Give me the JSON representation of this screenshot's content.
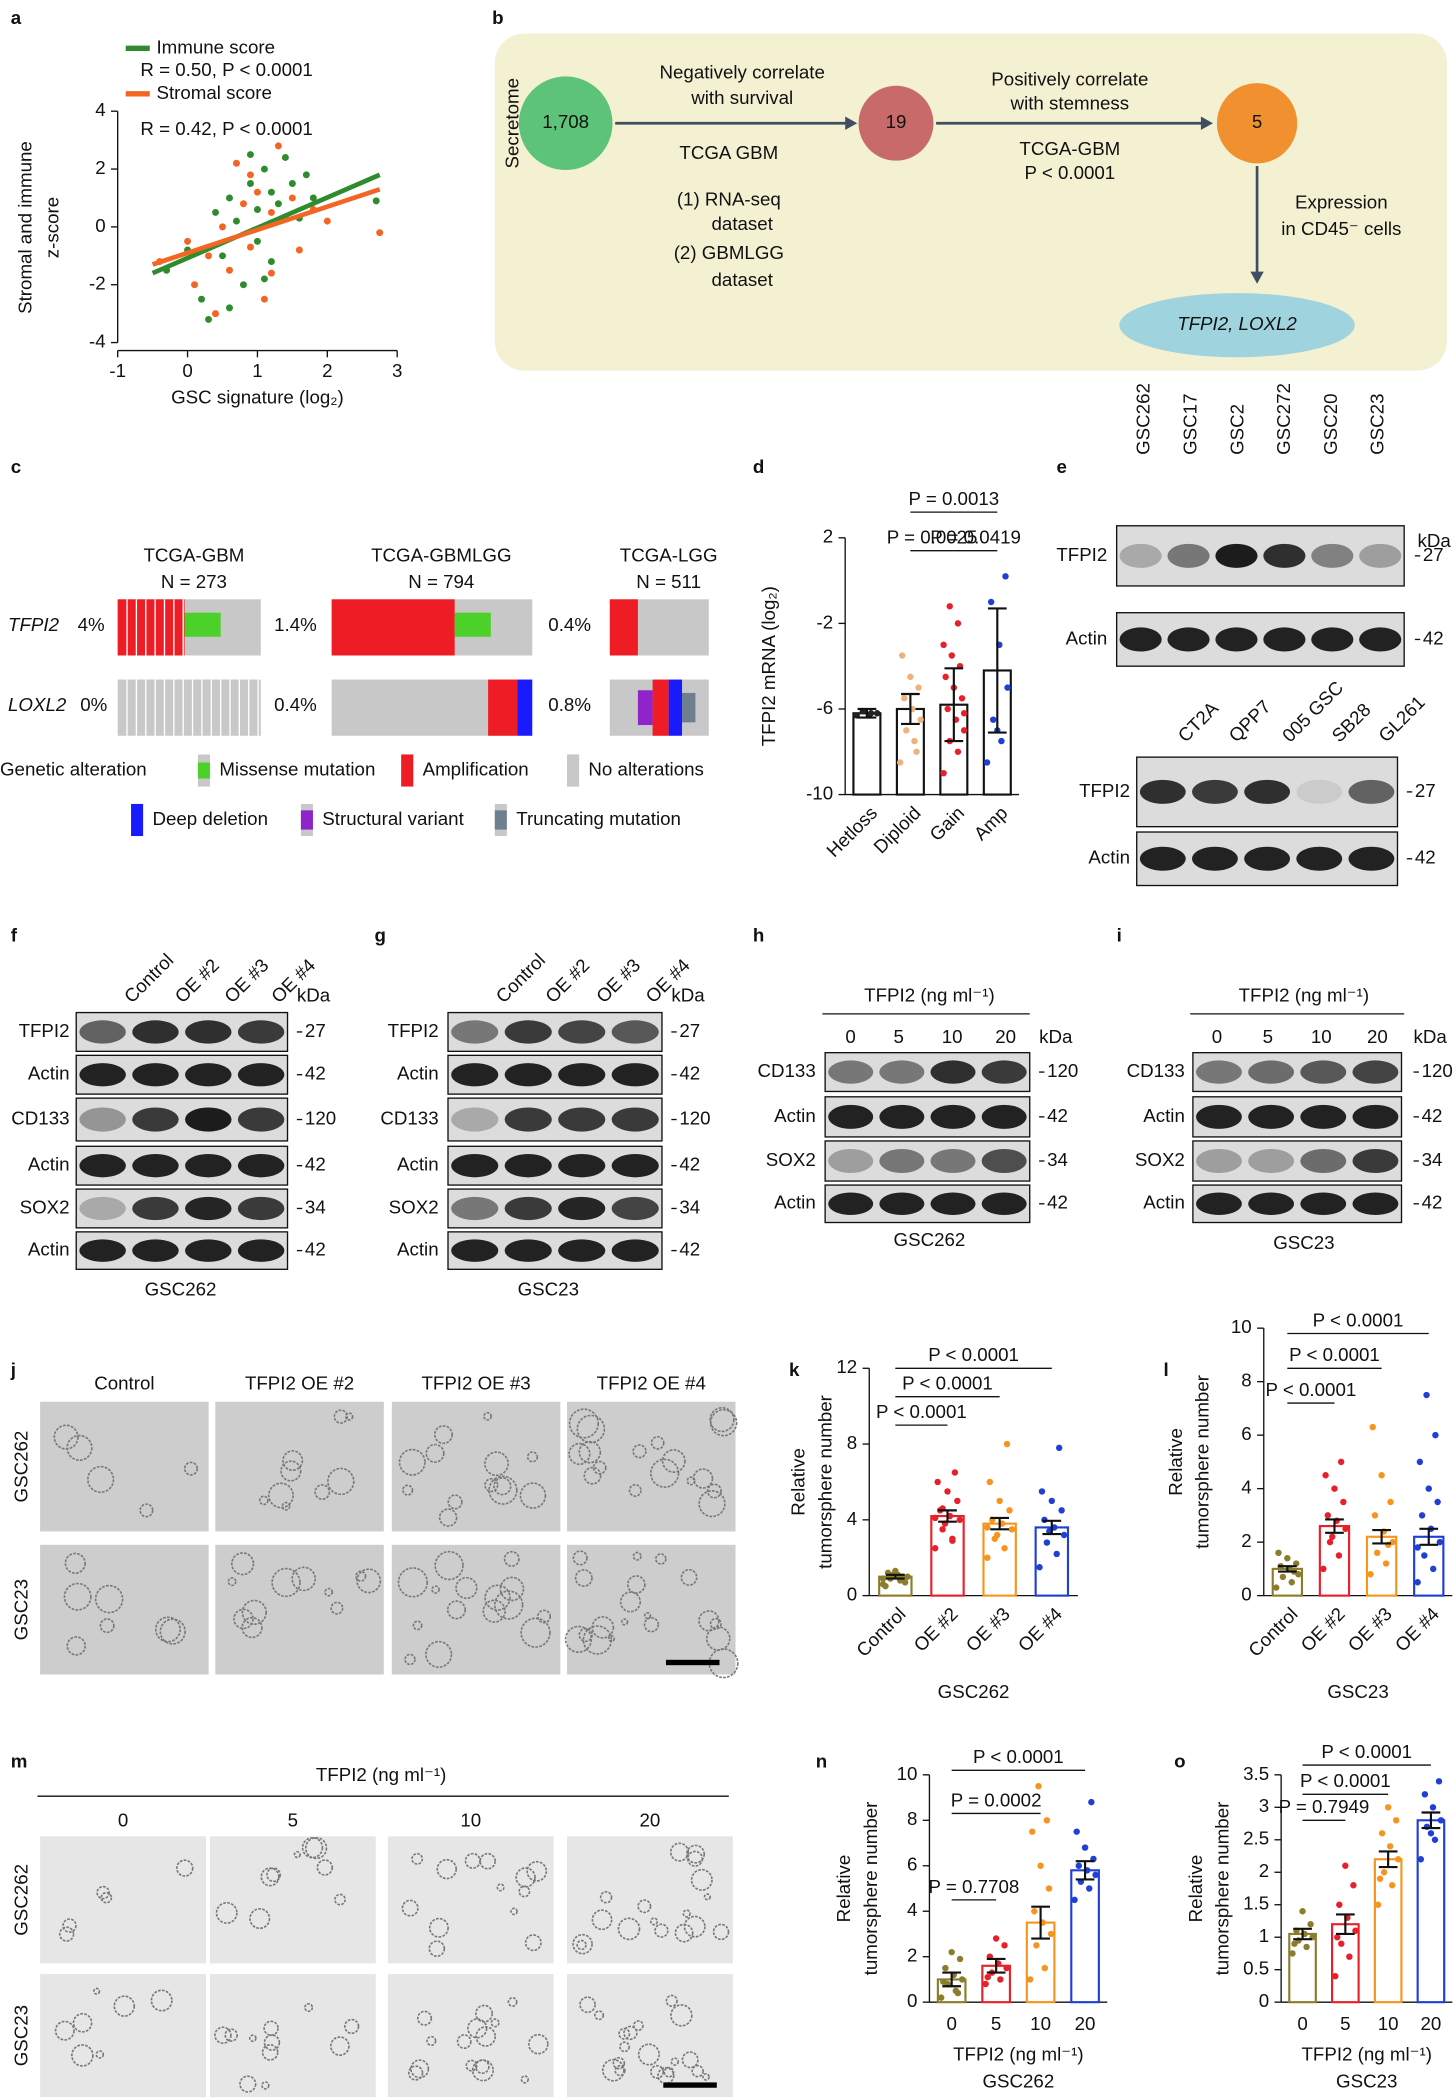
{
  "panel_labels": [
    "a",
    "b",
    "c",
    "d",
    "e",
    "f",
    "g",
    "h",
    "i",
    "j",
    "k",
    "l",
    "m",
    "n",
    "o"
  ],
  "panel_b": {
    "side_label": "Secretome",
    "nodes": [
      "1,708",
      "19",
      "5"
    ],
    "step1": [
      "Negatively correlate",
      "with survival"
    ],
    "step1_data": [
      "TCGA GBM",
      "(1) RNA-seq",
      "dataset",
      "(2) GBMLGG",
      "dataset"
    ],
    "step2": [
      "Positively correlate",
      "with stemness"
    ],
    "step2_data": [
      "TCGA-GBM",
      "P < 0.0001"
    ],
    "step3": [
      "Expression",
      "in CD45⁻ cells"
    ],
    "result": "TFPI2, LOXL2"
  },
  "panel_c": {
    "cohorts": [
      {
        "name": "TCGA-GBM",
        "n": "N = 273",
        "tfpi2": "4%",
        "loxl2": "0%"
      },
      {
        "name": "TCGA-GBMLGG",
        "n": "N = 794",
        "tfpi2": "1.4%",
        "loxl2": "0.4%"
      },
      {
        "name": "TCGA-LGG",
        "n": "N = 511",
        "tfpi2": "0.4%",
        "loxl2": "0.8%"
      }
    ],
    "genes": [
      "TFPI2",
      "LOXL2"
    ],
    "legend_title": "Genetic alteration",
    "legend": [
      "Missense mutation",
      "Amplification",
      "No alterations",
      "Deep deletion",
      "Structural variant",
      "Truncating mutation"
    ]
  },
  "blots": {
    "e_top": {
      "lanes": [
        "GSC262",
        "GSC17",
        "GSC2",
        "GSC272",
        "GSC20",
        "GSC23"
      ],
      "kda": "kDa",
      "rows": [
        {
          "label": "TFPI2",
          "size": "27"
        },
        {
          "label": "Actin",
          "size": "42"
        }
      ]
    },
    "e_bottom": {
      "lanes": [
        "CT2A",
        "QPP7",
        "005 GSC",
        "SB28",
        "GL261"
      ],
      "rows": [
        {
          "label": "TFPI2",
          "size": "27"
        },
        {
          "label": "Actin",
          "size": "42"
        }
      ]
    },
    "f": {
      "lanes": [
        "Control",
        "OE #2",
        "OE #3",
        "OE #4"
      ],
      "kda": "kDa",
      "rows": [
        {
          "label": "TFPI2",
          "size": "27"
        },
        {
          "label": "Actin",
          "size": "42"
        },
        {
          "label": "CD133",
          "size": "120"
        },
        {
          "label": "Actin",
          "size": "42"
        },
        {
          "label": "SOX2",
          "size": "34"
        },
        {
          "label": "Actin",
          "size": "42"
        }
      ],
      "caption": "GSC262"
    },
    "g": {
      "lanes": [
        "Control",
        "OE #2",
        "OE #3",
        "OE #4"
      ],
      "kda": "kDa",
      "rows": [
        {
          "label": "TFPI2",
          "size": "27"
        },
        {
          "label": "Actin",
          "size": "42"
        },
        {
          "label": "CD133",
          "size": "120"
        },
        {
          "label": "Actin",
          "size": "42"
        },
        {
          "label": "SOX2",
          "size": "34"
        },
        {
          "label": "Actin",
          "size": "42"
        }
      ],
      "caption": "GSC23"
    },
    "h": {
      "header": "TFPI2 (ng ml⁻¹)",
      "lanes": [
        "0",
        "5",
        "10",
        "20"
      ],
      "kda": "kDa",
      "rows": [
        {
          "label": "CD133",
          "size": "120"
        },
        {
          "label": "Actin",
          "size": "42"
        },
        {
          "label": "SOX2",
          "size": "34"
        },
        {
          "label": "Actin",
          "size": "42"
        }
      ],
      "caption": "GSC262"
    },
    "i": {
      "header": "TFPI2 (ng ml⁻¹)",
      "lanes": [
        "0",
        "5",
        "10",
        "20"
      ],
      "kda": "kDa",
      "rows": [
        {
          "label": "CD133",
          "size": "120"
        },
        {
          "label": "Actin",
          "size": "42"
        },
        {
          "label": "SOX2",
          "size": "34"
        },
        {
          "label": "Actin",
          "size": "42"
        }
      ],
      "caption": "GSC23"
    }
  },
  "micrographs": {
    "j": {
      "columns": [
        "Control",
        "TFPI2 OE #2",
        "TFPI2 OE #3",
        "TFPI2 OE #4"
      ],
      "rows": [
        "GSC262",
        "GSC23"
      ]
    },
    "m": {
      "header": "TFPI2 (ng ml⁻¹)",
      "columns": [
        "0",
        "5",
        "10",
        "20"
      ],
      "rows": [
        "GSC262",
        "GSC23"
      ]
    }
  },
  "chart_data": [
    {
      "type": "scatter",
      "xlabel": "GSC signature (log₂)",
      "ylabel": [
        "Stromal and immune",
        "z-score"
      ],
      "annotations": [
        "R = 0.50, P < 0.0001",
        "R = 0.42, P < 0.0001"
      ],
      "xlim": [
        -1,
        3
      ],
      "ylim": [
        -4,
        4
      ],
      "xticks": [
        -1,
        0,
        1,
        2,
        3
      ],
      "yticks": [
        -4,
        -2,
        0,
        2,
        4
      ],
      "series": [
        {
          "name": "Immune score",
          "color": "#2e8b2e",
          "x": [
            -0.3,
            0,
            0.2,
            0.4,
            0.5,
            0.6,
            0.7,
            0.8,
            0.9,
            1.0,
            1.0,
            1.1,
            1.2,
            1.2,
            1.3,
            1.4,
            1.5,
            1.6,
            1.7,
            1.8,
            0.3,
            0.6,
            0.9,
            1.1,
            2.7
          ],
          "y": [
            -1.5,
            -0.8,
            -2.5,
            0.5,
            -1,
            1,
            0.2,
            -2,
            1.5,
            0.6,
            -0.5,
            2,
            1.2,
            -1.2,
            0.8,
            2.4,
            1.5,
            0.3,
            1.8,
            1.0,
            -3.2,
            -2.8,
            2.5,
            -1.8,
            0.9
          ],
          "fit": {
            "x": [
              -0.5,
              2.75
            ],
            "y": [
              -1.6,
              1.8
            ]
          }
        },
        {
          "name": "Stromal score",
          "color": "#f26522",
          "x": [
            -0.4,
            0,
            0.1,
            0.3,
            0.5,
            0.6,
            0.8,
            0.9,
            1.0,
            1.1,
            1.2,
            1.3,
            1.4,
            1.5,
            1.6,
            1.8,
            2.0,
            0.4,
            0.7,
            1.2,
            2.75,
            0.9
          ],
          "y": [
            -1.2,
            -0.5,
            -2,
            -1,
            0,
            -1.5,
            0.8,
            -0.7,
            1.2,
            -2.5,
            0.5,
            2.8,
            0.3,
            1,
            -0.8,
            0.6,
            0.2,
            -3,
            2.2,
            -1.6,
            -0.2,
            1.8
          ],
          "fit": {
            "x": [
              -0.5,
              2.75
            ],
            "y": [
              -1.3,
              1.3
            ]
          }
        }
      ]
    },
    {
      "type": "bar",
      "ylabel": [
        "TFPI2 mRNA (log₂)"
      ],
      "categories": [
        "Hetloss",
        "Diploid",
        "Gain",
        "Amp"
      ],
      "values": [
        -6.2,
        -6.0,
        -5.8,
        -4.2
      ],
      "errors": [
        0.2,
        0.7,
        1.7,
        2.9
      ],
      "colors": [
        "#222222",
        "#f0b27a",
        "#e8202a",
        "#1f3fd6"
      ],
      "points": [
        [
          -6.3,
          -6.2,
          -6.1,
          -6.2,
          -6.3
        ],
        [
          -8.5,
          -7.5,
          -7,
          -6.5,
          -6,
          -5.5,
          -5,
          -4.5,
          -3.5,
          -8
        ],
        [
          -9,
          -8,
          -7.5,
          -7,
          -6.5,
          -6,
          -5.5,
          -5,
          -4.5,
          -4,
          -3.5,
          -3,
          -2,
          -1.2,
          -6.2
        ],
        [
          -8.5,
          -7.5,
          -6.5,
          -5,
          -3,
          -1,
          0.2,
          -7
        ]
      ],
      "annotations": [
        "P = 0.0013",
        "P = 0.0025",
        "P = 0.0419"
      ],
      "ylim": [
        -10,
        2
      ],
      "yticks": [
        -10,
        -6,
        -2,
        2
      ]
    },
    {
      "type": "bar",
      "ylabel": [
        "Relative",
        "tumorsphere number"
      ],
      "categories": [
        "Control",
        "OE #2",
        "OE #3",
        "OE #4"
      ],
      "values": [
        1.0,
        4.2,
        3.8,
        3.6
      ],
      "errors": [
        0.1,
        0.3,
        0.3,
        0.35
      ],
      "colors": [
        "#8b7d2b",
        "#e8202a",
        "#f7941d",
        "#1f3fd6"
      ],
      "points": [
        [
          0.6,
          0.8,
          0.9,
          1.0,
          1.1,
          1.2,
          0.7,
          1.3,
          0.5,
          1.0,
          1.1,
          0.9
        ],
        [
          2.5,
          3,
          3.5,
          4,
          4.2,
          4.5,
          5,
          5.5,
          6,
          6.5,
          3.8,
          4.1,
          2.9,
          4.6
        ],
        [
          2,
          2.5,
          3,
          3.5,
          3.8,
          4,
          4.5,
          5,
          6,
          8,
          3.2,
          3.6
        ],
        [
          1.5,
          2.2,
          2.8,
          3.2,
          3.6,
          4,
          4.5,
          5,
          5.5,
          7.8,
          3.4
        ]
      ],
      "annotations": [
        "P < 0.0001",
        "P < 0.0001",
        "P < 0.0001"
      ],
      "xlabel": "GSC262",
      "ylim": [
        0,
        12
      ],
      "yticks": [
        0,
        4,
        8,
        12
      ]
    },
    {
      "type": "bar",
      "ylabel": [
        "Relative",
        "tumorsphere number"
      ],
      "categories": [
        "Control",
        "OE #2",
        "OE #3",
        "OE #4"
      ],
      "values": [
        1.0,
        2.6,
        2.2,
        2.2
      ],
      "errors": [
        0.1,
        0.25,
        0.25,
        0.3
      ],
      "colors": [
        "#8b7d2b",
        "#e8202a",
        "#f7941d",
        "#1f3fd6"
      ],
      "points": [
        [
          0.3,
          0.5,
          0.7,
          0.8,
          1,
          1.1,
          1.2,
          1.4,
          1.6,
          0.9
        ],
        [
          1,
          1.5,
          2,
          2.5,
          2.8,
          3,
          3.5,
          4,
          4.5,
          5,
          2.2
        ],
        [
          0.8,
          1.2,
          1.6,
          2,
          2.4,
          3,
          3.5,
          4.5,
          6.3,
          1.9
        ],
        [
          0.5,
          1,
          1.5,
          2,
          2.5,
          3,
          3.5,
          4,
          5,
          6,
          7.5,
          1.8
        ]
      ],
      "annotations": [
        "P < 0.0001",
        "P < 0.0001",
        "P < 0.0001"
      ],
      "xlabel": "GSC23",
      "ylim": [
        0,
        10
      ],
      "yticks": [
        0,
        2,
        4,
        6,
        8,
        10
      ]
    },
    {
      "type": "bar",
      "ylabel": [
        "Relative",
        "tumorsphere number"
      ],
      "categories": [
        "0",
        "5",
        "10",
        "20"
      ],
      "values": [
        1.0,
        1.6,
        3.5,
        5.8
      ],
      "errors": [
        0.3,
        0.3,
        0.7,
        0.4
      ],
      "colors": [
        "#8b7d2b",
        "#e8202a",
        "#f7941d",
        "#1f3fd6"
      ],
      "points": [
        [
          0.2,
          0.5,
          0.8,
          1,
          1.2,
          1.5,
          1.9,
          2.2,
          0.9,
          0.4
        ],
        [
          0.8,
          1,
          1.3,
          1.5,
          1.7,
          2,
          2.5,
          2.8,
          1.1
        ],
        [
          1,
          1.5,
          2.5,
          3,
          3.5,
          4,
          5,
          6,
          7.5,
          8,
          9.5
        ],
        [
          4.5,
          5,
          5.3,
          5.6,
          5.8,
          6,
          6.3,
          6.8,
          7.5,
          8.8
        ]
      ],
      "annotations": [
        "P = 0.7708",
        "P = 0.0002",
        "P < 0.0001"
      ],
      "xlabel": "TFPI2 (ng ml⁻¹)",
      "subtitle": "GSC262",
      "ylim": [
        0,
        10
      ],
      "yticks": [
        0,
        2,
        4,
        6,
        8,
        10
      ]
    },
    {
      "type": "bar",
      "ylabel": [
        "Relative",
        "tumorsphere number"
      ],
      "categories": [
        "0",
        "5",
        "10",
        "20"
      ],
      "values": [
        1.05,
        1.2,
        2.2,
        2.8
      ],
      "errors": [
        0.08,
        0.15,
        0.12,
        0.12
      ],
      "colors": [
        "#8b7d2b",
        "#e8202a",
        "#f7941d",
        "#1f3fd6"
      ],
      "points": [
        [
          0.75,
          0.85,
          0.95,
          1,
          1.05,
          1.1,
          1.2,
          1.4,
          0.9
        ],
        [
          0.4,
          0.7,
          0.9,
          1.1,
          1.3,
          1.5,
          1.8,
          2.1,
          1
        ],
        [
          1.5,
          1.8,
          2,
          2.2,
          2.4,
          2.6,
          2.8,
          3,
          1.9
        ],
        [
          2.2,
          2.5,
          2.7,
          2.8,
          3,
          3.2,
          3.4,
          2.6
        ]
      ],
      "annotations": [
        "P = 0.7949",
        "P < 0.0001",
        "P < 0.0001"
      ],
      "xlabel": "TFPI2 (ng ml⁻¹)",
      "subtitle": "GSC23",
      "ylim": [
        0,
        3.5
      ],
      "yticks": [
        0,
        0.5,
        1,
        1.5,
        2,
        2.5,
        3,
        3.5
      ]
    }
  ]
}
